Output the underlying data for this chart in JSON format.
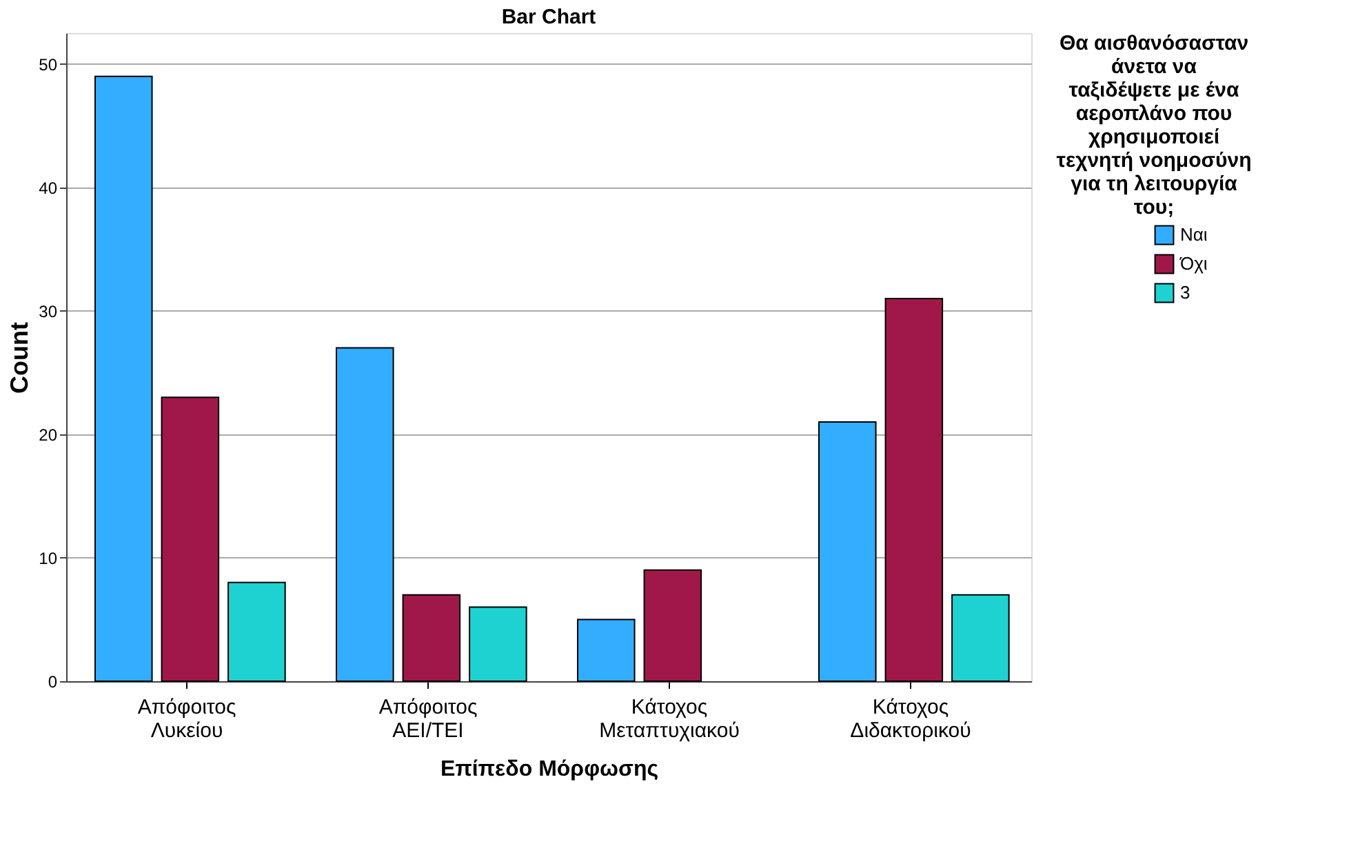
{
  "chart_data": {
    "type": "bar",
    "title": "Bar Chart",
    "xlabel": "Επίπεδο Μόρφωσης",
    "ylabel": "Count",
    "legend_title": "Θα αισθανόσασταν άνετα να ταξιδέψετε με ένα αεροπλάνο που χρησιμοποιεί τεχνητή νοημοσύνη για τη λειτουργία του;",
    "categories": [
      "Απόφοιτος Λυκείου",
      "Απόφοιτος ΑΕΙ/ΤΕΙ",
      "Κάτοχος Μεταπτυχιακού",
      "Κάτοχος Διδακτορικού"
    ],
    "series": [
      {
        "name": "Ναι",
        "color": "#33adff",
        "values": [
          49,
          27,
          5,
          21
        ]
      },
      {
        "name": "Όχι",
        "color": "#a0184a",
        "values": [
          23,
          7,
          9,
          31
        ]
      },
      {
        "name": "3",
        "color": "#1fd2d2",
        "values": [
          8,
          6,
          null,
          7
        ]
      }
    ],
    "ylim": [
      0,
      52.5
    ],
    "yticks": [
      0,
      10,
      20,
      30,
      40,
      50
    ],
    "grid": "y",
    "legend": "right"
  }
}
